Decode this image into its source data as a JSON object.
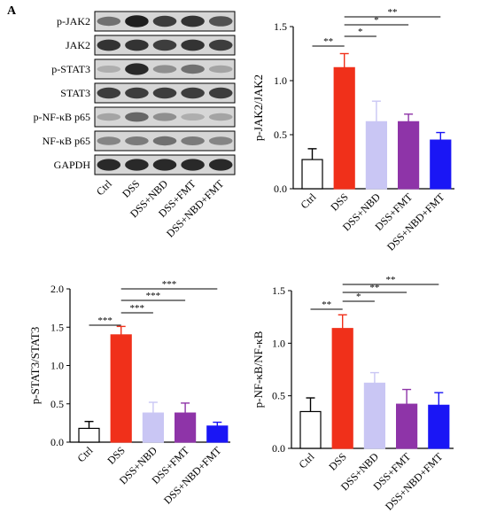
{
  "panel_letter": "A",
  "western_blot": {
    "row_labels": [
      "p-JAK2",
      "JAK2",
      "p-STAT3",
      "STAT3",
      "p-NF-κB p65",
      "NF-κB p65",
      "GAPDH"
    ],
    "lane_labels": [
      "Ctrl",
      "DSS",
      "DSS+NBD",
      "DSS+FMT",
      "DSS+NBD+FMT"
    ],
    "band_intensity": [
      [
        0.55,
        0.95,
        0.8,
        0.85,
        0.7
      ],
      [
        0.85,
        0.85,
        0.8,
        0.85,
        0.8
      ],
      [
        0.25,
        0.9,
        0.4,
        0.55,
        0.3
      ],
      [
        0.8,
        0.8,
        0.8,
        0.8,
        0.8
      ],
      [
        0.3,
        0.6,
        0.4,
        0.25,
        0.3
      ],
      [
        0.45,
        0.5,
        0.55,
        0.5,
        0.45
      ],
      [
        0.9,
        0.9,
        0.9,
        0.9,
        0.9
      ]
    ]
  },
  "colors": {
    "Ctrl": "#ffffff",
    "DSS": "#f0301a",
    "DSS+NBD": "#c9c6f4",
    "DSS+FMT": "#8e34a8",
    "DSS+NBD+FMT": "#1a16f5"
  },
  "chart_data": [
    {
      "type": "bar",
      "categories": [
        "Ctrl",
        "DSS",
        "DSS+NBD",
        "DSS+FMT",
        "DSS+NBD+FMT"
      ],
      "values": [
        0.27,
        1.12,
        0.62,
        0.62,
        0.45
      ],
      "errors": [
        0.1,
        0.13,
        0.19,
        0.07,
        0.07
      ],
      "ylabel": "p-JAK2/JAK2",
      "ylim": [
        0,
        1.5
      ],
      "yticks": [
        "0.0",
        "0.5",
        "1.0",
        "1.5"
      ],
      "significance": [
        {
          "from": "Ctrl",
          "to": "DSS",
          "label": "**"
        },
        {
          "from": "DSS",
          "to": "DSS+NBD",
          "label": "*"
        },
        {
          "from": "DSS",
          "to": "DSS+FMT",
          "label": "*"
        },
        {
          "from": "DSS",
          "to": "DSS+NBD+FMT",
          "label": "**"
        }
      ]
    },
    {
      "type": "bar",
      "categories": [
        "Ctrl",
        "DSS",
        "DSS+NBD",
        "DSS+FMT",
        "DSS+NBD+FMT"
      ],
      "values": [
        0.18,
        1.4,
        0.38,
        0.38,
        0.21
      ],
      "errors": [
        0.09,
        0.11,
        0.14,
        0.13,
        0.05
      ],
      "ylabel": "p-STAT3/STAT3",
      "ylim": [
        0,
        2.0
      ],
      "yticks": [
        "0.0",
        "0.5",
        "1.0",
        "1.5",
        "2.0"
      ],
      "significance": [
        {
          "from": "Ctrl",
          "to": "DSS",
          "label": "***"
        },
        {
          "from": "DSS",
          "to": "DSS+NBD",
          "label": "***"
        },
        {
          "from": "DSS",
          "to": "DSS+FMT",
          "label": "***"
        },
        {
          "from": "DSS",
          "to": "DSS+NBD+FMT",
          "label": "***"
        }
      ]
    },
    {
      "type": "bar",
      "categories": [
        "Ctrl",
        "DSS",
        "DSS+NBD",
        "DSS+FMT",
        "DSS+NBD+FMT"
      ],
      "values": [
        0.35,
        1.14,
        0.62,
        0.42,
        0.41
      ],
      "errors": [
        0.13,
        0.13,
        0.1,
        0.14,
        0.12
      ],
      "ylabel": "p-NF-κB/NF-κB",
      "ylim": [
        0,
        1.5
      ],
      "yticks": [
        "0.0",
        "0.5",
        "1.0",
        "1.5"
      ],
      "significance": [
        {
          "from": "Ctrl",
          "to": "DSS",
          "label": "**"
        },
        {
          "from": "DSS",
          "to": "DSS+NBD",
          "label": "*"
        },
        {
          "from": "DSS",
          "to": "DSS+FMT",
          "label": "**"
        },
        {
          "from": "DSS",
          "to": "DSS+NBD+FMT",
          "label": "**"
        }
      ]
    }
  ]
}
